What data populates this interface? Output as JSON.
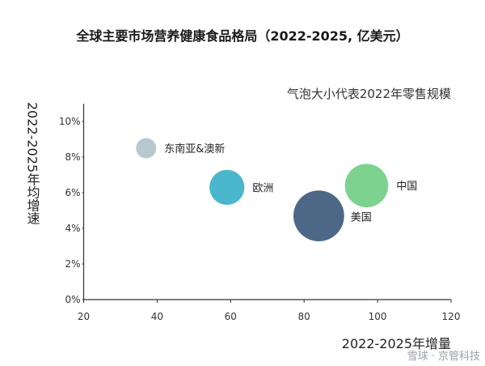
{
  "chart_data": {
    "type": "scatter",
    "title": "全球主要市场营养健康食品格局（2022-2025, 亿美元）",
    "annotation": "气泡大小代表2022年零售规模",
    "xlabel": "2022-2025年增量",
    "ylabel": "2022-2025年均增速",
    "xlim": [
      20,
      120
    ],
    "ylim": [
      0,
      11
    ],
    "xticks": [
      "20",
      "40",
      "60",
      "80",
      "100",
      "120"
    ],
    "yticks": [
      "0%",
      "2%",
      "4%",
      "6%",
      "8%",
      "10%"
    ],
    "points": [
      {
        "label": "东南亚&澳新",
        "x": 37,
        "y": 8.5,
        "size": 1,
        "color": "#b7c9cf"
      },
      {
        "label": "欧洲",
        "x": 59,
        "y": 6.3,
        "size": 3,
        "color": "#4bb7cc"
      },
      {
        "label": "美国",
        "x": 84,
        "y": 4.7,
        "size": 6.3,
        "color": "#4d6887"
      },
      {
        "label": "中国",
        "x": 97,
        "y": 6.4,
        "size": 4.6,
        "color": "#7dd28f"
      }
    ],
    "grid": false
  },
  "watermark": "雪球 · 京管科技"
}
